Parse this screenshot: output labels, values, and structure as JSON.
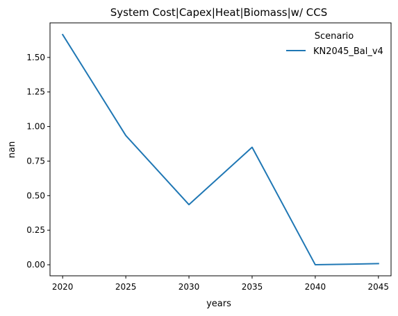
{
  "chart_data": {
    "type": "line",
    "title": "System Cost|Capex|Heat|Biomass|w/ CCS",
    "xlabel": "years",
    "ylabel": "nan",
    "x": [
      2020,
      2025,
      2030,
      2035,
      2040,
      2045
    ],
    "xticks": [
      "2020",
      "2025",
      "2030",
      "2035",
      "2040",
      "2045"
    ],
    "yticks": [
      "0.00",
      "0.25",
      "0.50",
      "0.75",
      "1.00",
      "1.25",
      "1.50"
    ],
    "xlim": [
      2019,
      2046
    ],
    "ylim": [
      -0.08,
      1.75
    ],
    "grid": false,
    "legend": {
      "title": "Scenario",
      "placement": "top-right"
    },
    "series": [
      {
        "name": "KN2045_Bal_v4",
        "color": "#1f77b4",
        "values": [
          1.665,
          0.935,
          0.435,
          0.85,
          0.0,
          0.008
        ]
      }
    ]
  }
}
